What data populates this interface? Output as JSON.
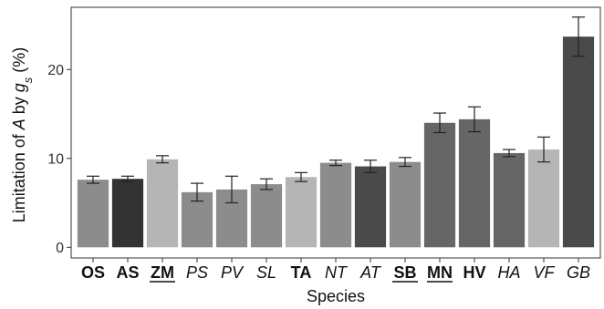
{
  "chart_data": {
    "type": "bar",
    "title": "",
    "xlabel": "Species",
    "ylabel_parts": [
      {
        "text": "Limitation of ",
        "italic": false,
        "sub": false
      },
      {
        "text": "A",
        "italic": true,
        "sub": false
      },
      {
        "text": " by ",
        "italic": false,
        "sub": false
      },
      {
        "text": "g",
        "italic": true,
        "sub": false
      },
      {
        "text": "s",
        "italic": true,
        "sub": true
      },
      {
        "text": " (%)",
        "italic": false,
        "sub": false
      }
    ],
    "ylim": [
      -1.2,
      27
    ],
    "yticks": [
      0,
      10,
      20
    ],
    "grid": false,
    "categories": [
      {
        "label": "OS",
        "bold": true,
        "italic": false,
        "underline": false,
        "value": 7.6,
        "err": 0.4,
        "color": "#8c8c8c"
      },
      {
        "label": "AS",
        "bold": true,
        "italic": false,
        "underline": false,
        "value": 7.7,
        "err": 0.3,
        "color": "#333333"
      },
      {
        "label": "ZM",
        "bold": true,
        "italic": false,
        "underline": true,
        "value": 9.9,
        "err": 0.4,
        "color": "#b5b5b5"
      },
      {
        "label": "PS",
        "bold": false,
        "italic": true,
        "underline": false,
        "value": 6.2,
        "err": 1.0,
        "color": "#8c8c8c"
      },
      {
        "label": "PV",
        "bold": false,
        "italic": true,
        "underline": false,
        "value": 6.5,
        "err": 1.5,
        "color": "#8c8c8c"
      },
      {
        "label": "SL",
        "bold": false,
        "italic": true,
        "underline": false,
        "value": 7.1,
        "err": 0.6,
        "color": "#8c8c8c"
      },
      {
        "label": "TA",
        "bold": true,
        "italic": false,
        "underline": false,
        "value": 7.9,
        "err": 0.5,
        "color": "#b5b5b5"
      },
      {
        "label": "NT",
        "bold": false,
        "italic": true,
        "underline": false,
        "value": 9.5,
        "err": 0.3,
        "color": "#8c8c8c"
      },
      {
        "label": "AT",
        "bold": false,
        "italic": true,
        "underline": false,
        "value": 9.1,
        "err": 0.7,
        "color": "#4a4a4a"
      },
      {
        "label": "SB",
        "bold": true,
        "italic": false,
        "underline": true,
        "value": 9.6,
        "err": 0.5,
        "color": "#8c8c8c"
      },
      {
        "label": "MN",
        "bold": true,
        "italic": false,
        "underline": true,
        "value": 14.0,
        "err": 1.1,
        "color": "#666666"
      },
      {
        "label": "HV",
        "bold": true,
        "italic": false,
        "underline": false,
        "value": 14.4,
        "err": 1.4,
        "color": "#666666"
      },
      {
        "label": "HA",
        "bold": false,
        "italic": true,
        "underline": false,
        "value": 10.6,
        "err": 0.4,
        "color": "#666666"
      },
      {
        "label": "VF",
        "bold": false,
        "italic": true,
        "underline": false,
        "value": 11.0,
        "err": 1.4,
        "color": "#b5b5b5"
      },
      {
        "label": "GB",
        "bold": false,
        "italic": true,
        "underline": false,
        "value": 23.7,
        "err": 2.2,
        "color": "#4a4a4a"
      }
    ]
  }
}
